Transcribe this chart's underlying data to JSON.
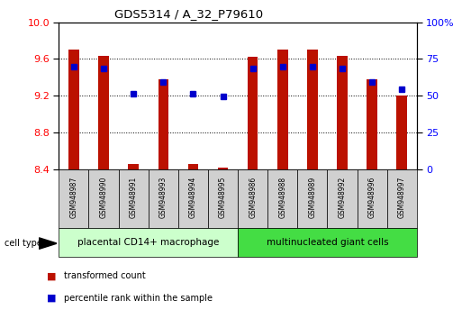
{
  "title": "GDS5314 / A_32_P79610",
  "samples": [
    "GSM948987",
    "GSM948990",
    "GSM948991",
    "GSM948993",
    "GSM948994",
    "GSM948995",
    "GSM948986",
    "GSM948988",
    "GSM948989",
    "GSM948992",
    "GSM948996",
    "GSM948997"
  ],
  "transformed_count": [
    9.7,
    9.63,
    8.46,
    9.38,
    8.46,
    8.42,
    9.62,
    9.7,
    9.7,
    9.63,
    9.38,
    9.2
  ],
  "percentile_rank_vals": [
    9.52,
    9.5,
    9.22,
    9.35,
    9.22,
    9.19,
    9.5,
    9.52,
    9.52,
    9.5,
    9.35,
    9.27
  ],
  "group1_label": "placental CD14+ macrophage",
  "group2_label": "multinucleated giant cells",
  "group1_count": 6,
  "group2_count": 6,
  "ymin": 8.4,
  "ymax": 10.0,
  "yticks": [
    8.4,
    8.8,
    9.2,
    9.6,
    10.0
  ],
  "right_ytick_labels": [
    "0",
    "25",
    "50",
    "75",
    "100%"
  ],
  "bar_color": "#bb1100",
  "dot_color": "#0000cc",
  "group1_bg": "#ccffcc",
  "group2_bg": "#44dd44",
  "sample_bg": "#d0d0d0",
  "legend_bar_label": "transformed count",
  "legend_dot_label": "percentile rank within the sample",
  "bar_width": 0.35,
  "cell_type_label": "cell type"
}
